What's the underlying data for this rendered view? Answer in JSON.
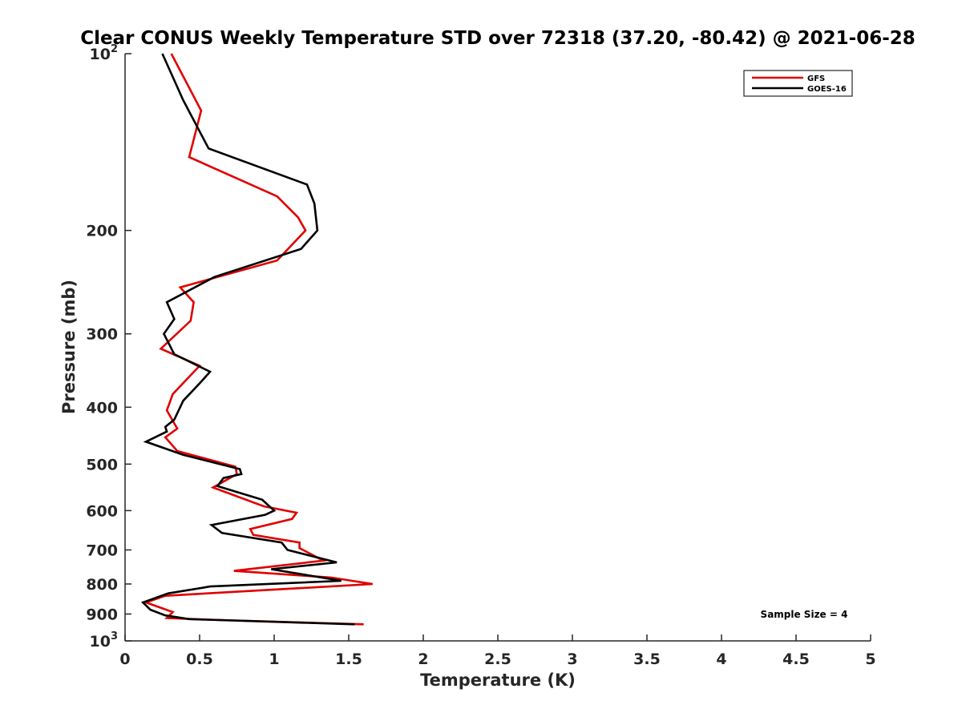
{
  "chart_data": {
    "type": "line",
    "title": "Clear CONUS Weekly Temperature STD over 72318 (37.20, -80.42) @ 2021-06-28",
    "xlabel": "Temperature (K)",
    "ylabel": "Pressure (mb)",
    "xlim": [
      0,
      5
    ],
    "ylim": [
      100,
      1000
    ],
    "y_scale": "log",
    "y_reversed": true,
    "grid": false,
    "legend_position": "top-right",
    "x_ticks": [
      "0",
      "0.5",
      "1",
      "1.5",
      "2",
      "2.5",
      "3",
      "3.5",
      "4",
      "4.5",
      "5"
    ],
    "y_ticks": [
      {
        "value": 100,
        "base": "10",
        "exp": "2"
      },
      {
        "value": 200,
        "label": "200"
      },
      {
        "value": 300,
        "label": "300"
      },
      {
        "value": 400,
        "label": "400"
      },
      {
        "value": 500,
        "label": "500"
      },
      {
        "value": 600,
        "label": "600"
      },
      {
        "value": 700,
        "label": "700"
      },
      {
        "value": 800,
        "label": "800"
      },
      {
        "value": 900,
        "label": "900"
      },
      {
        "value": 1000,
        "base": "10",
        "exp": "3"
      }
    ],
    "series": [
      {
        "name": "GFS",
        "color": "#e00000",
        "points": [
          [
            0.31,
            100
          ],
          [
            0.51,
            125
          ],
          [
            0.43,
            150
          ],
          [
            1.02,
            175
          ],
          [
            1.16,
            190
          ],
          [
            1.21,
            200
          ],
          [
            1.02,
            225
          ],
          [
            0.37,
            250
          ],
          [
            0.46,
            265
          ],
          [
            0.44,
            285
          ],
          [
            0.24,
            318
          ],
          [
            0.5,
            340
          ],
          [
            0.32,
            380
          ],
          [
            0.28,
            405
          ],
          [
            0.35,
            435
          ],
          [
            0.27,
            450
          ],
          [
            0.35,
            475
          ],
          [
            0.74,
            505
          ],
          [
            0.75,
            520
          ],
          [
            0.59,
            548
          ],
          [
            0.93,
            590
          ],
          [
            1.15,
            605
          ],
          [
            1.12,
            620
          ],
          [
            0.84,
            645
          ],
          [
            0.86,
            660
          ],
          [
            1.17,
            680
          ],
          [
            1.17,
            695
          ],
          [
            1.24,
            710
          ],
          [
            1.33,
            730
          ],
          [
            0.73,
            760
          ],
          [
            1.38,
            780
          ],
          [
            1.66,
            800
          ],
          [
            0.27,
            838
          ],
          [
            0.14,
            860
          ],
          [
            0.32,
            893
          ],
          [
            0.28,
            914
          ],
          [
            0.56,
            920
          ],
          [
            1.6,
            937
          ]
        ]
      },
      {
        "name": "GOES-16",
        "color": "#000000",
        "points": [
          [
            0.25,
            100
          ],
          [
            0.39,
            120
          ],
          [
            0.56,
            145
          ],
          [
            1.22,
            167
          ],
          [
            1.27,
            180
          ],
          [
            1.29,
            200
          ],
          [
            1.18,
            215
          ],
          [
            0.6,
            240
          ],
          [
            0.28,
            265
          ],
          [
            0.33,
            283
          ],
          [
            0.26,
            300
          ],
          [
            0.33,
            325
          ],
          [
            0.57,
            348
          ],
          [
            0.51,
            362
          ],
          [
            0.39,
            390
          ],
          [
            0.33,
            420
          ],
          [
            0.27,
            432
          ],
          [
            0.28,
            440
          ],
          [
            0.14,
            458
          ],
          [
            0.39,
            482
          ],
          [
            0.77,
            510
          ],
          [
            0.78,
            520
          ],
          [
            0.66,
            528
          ],
          [
            0.62,
            545
          ],
          [
            0.92,
            575
          ],
          [
            1.0,
            600
          ],
          [
            0.94,
            610
          ],
          [
            0.58,
            635
          ],
          [
            0.65,
            655
          ],
          [
            1.05,
            680
          ],
          [
            1.09,
            700
          ],
          [
            1.42,
            735
          ],
          [
            0.98,
            755
          ],
          [
            1.45,
            790
          ],
          [
            0.57,
            808
          ],
          [
            0.29,
            830
          ],
          [
            0.12,
            860
          ],
          [
            0.17,
            885
          ],
          [
            0.27,
            905
          ],
          [
            0.43,
            918
          ],
          [
            1.54,
            937
          ]
        ]
      }
    ],
    "annotations": [
      "Sample Size = 4"
    ]
  }
}
